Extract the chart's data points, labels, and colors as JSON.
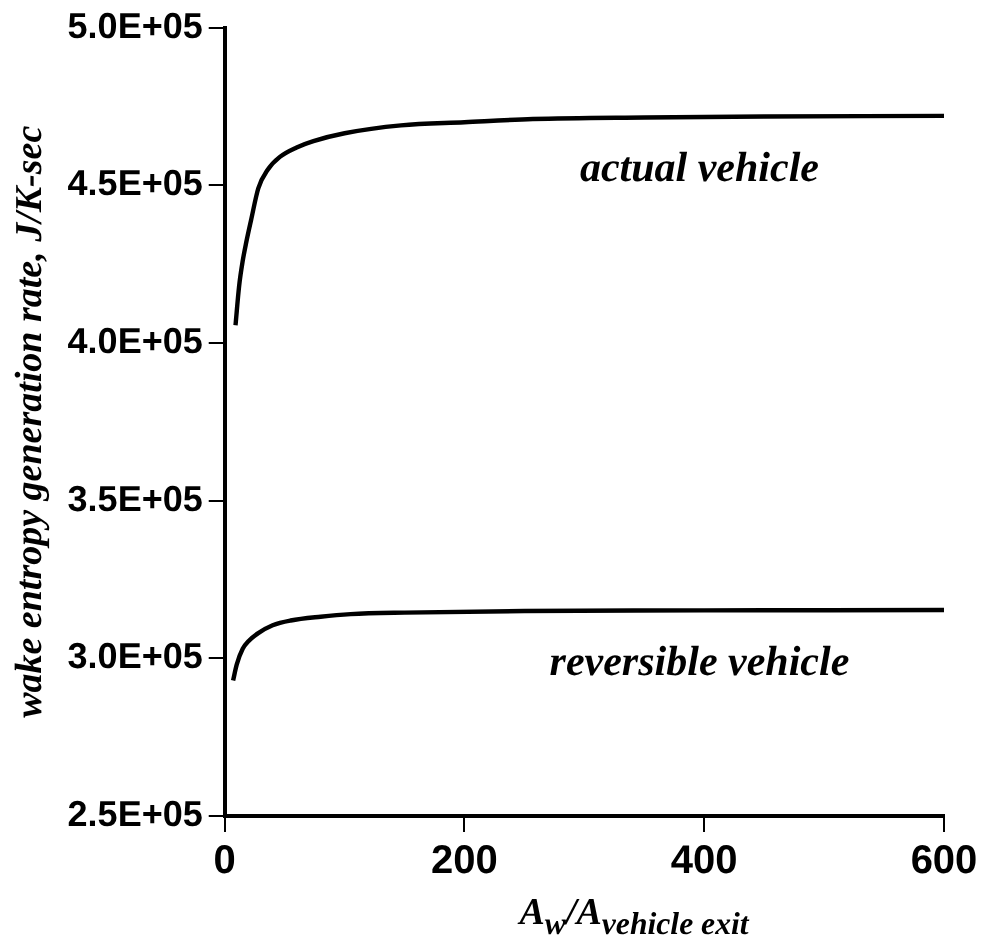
{
  "chart_data": {
    "type": "line",
    "xlabel": "A$_{w}$/A$_{vehicle exit}$",
    "ylabel": "wake entropy generation rate, J/K-sec",
    "series": [
      {
        "color": "#000000",
        "x": [
          9,
          12,
          15,
          18,
          22,
          28,
          36,
          46,
          60,
          74,
          100,
          147,
          200,
          257,
          350,
          450,
          600
        ],
        "values": [
          405600,
          418000,
          426000,
          432000,
          439000,
          449000,
          455000,
          459000,
          462000,
          464000,
          466500,
          469000,
          470000,
          471000,
          471500,
          471800,
          472000
        ]
      },
      {
        "color": "#000000",
        "x": [
          7,
          10,
          15,
          20,
          28,
          40,
          55,
          80,
          105,
          150,
          250,
          400,
          600
        ],
        "values": [
          293000,
          298000,
          303000,
          305500,
          308000,
          310500,
          312000,
          313200,
          314000,
          314500,
          315000,
          315200,
          315300
        ]
      }
    ],
    "xlim": [
      0,
      600
    ],
    "xticks": [
      0,
      200,
      400,
      600
    ],
    "ylim": [
      250000,
      500000
    ],
    "yticks": [
      {
        "value": 250000,
        "label": "2.5E+05"
      },
      {
        "value": 300000,
        "label": "3.0E+05"
      },
      {
        "value": 350000,
        "label": "3.5E+05"
      },
      {
        "value": 400000,
        "label": "4.0E+05"
      },
      {
        "value": 450000,
        "label": "4.5E+05"
      },
      {
        "value": 500000,
        "label": "5.0E+05"
      }
    ],
    "annotations": [
      "actual vehicle",
      "reversible vehicle"
    ],
    "grid": false,
    "legend": false,
    "marker": "none",
    "line_style": "solid"
  }
}
